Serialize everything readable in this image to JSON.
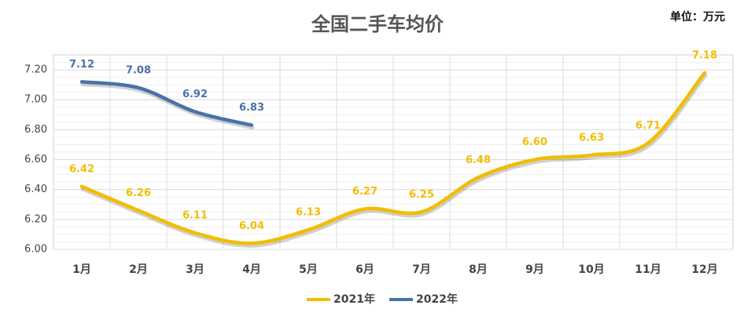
{
  "chart_data": {
    "type": "line",
    "title": "全国二手车均价",
    "annotation": "单位：万元",
    "categories": [
      "1月",
      "2月",
      "3月",
      "4月",
      "5月",
      "6月",
      "7月",
      "8月",
      "9月",
      "10月",
      "11月",
      "12月"
    ],
    "series": [
      {
        "name": "2021年",
        "color": "#f2bd00",
        "values": [
          6.42,
          6.26,
          6.11,
          6.04,
          6.13,
          6.27,
          6.25,
          6.48,
          6.6,
          6.63,
          6.71,
          7.18
        ],
        "value_labels": [
          "6.42",
          "6.26",
          "6.11",
          "6.04",
          "6.13",
          "6.27",
          "6.25",
          "6.48",
          "6.60",
          "6.63",
          "6.71",
          "7.18"
        ]
      },
      {
        "name": "2022年",
        "color": "#4a72a8",
        "values": [
          7.12,
          7.08,
          6.92,
          6.83,
          null,
          null,
          null,
          null,
          null,
          null,
          null,
          null
        ],
        "value_labels": [
          "7.12",
          "7.08",
          "6.92",
          "6.83",
          null,
          null,
          null,
          null,
          null,
          null,
          null,
          null
        ]
      }
    ],
    "ylim": [
      6,
      7.3
    ],
    "yticks": [
      {
        "value": 6,
        "label": "6.00"
      },
      {
        "value": 6.2,
        "label": "6.20"
      },
      {
        "value": 6.4,
        "label": "6.40"
      },
      {
        "value": 6.6,
        "label": "6.60"
      },
      {
        "value": 6.8,
        "label": "6.80"
      },
      {
        "value": 7,
        "label": "7.00"
      },
      {
        "value": 7.2,
        "label": "7.20"
      }
    ],
    "grid": true,
    "legend": "bottom"
  }
}
